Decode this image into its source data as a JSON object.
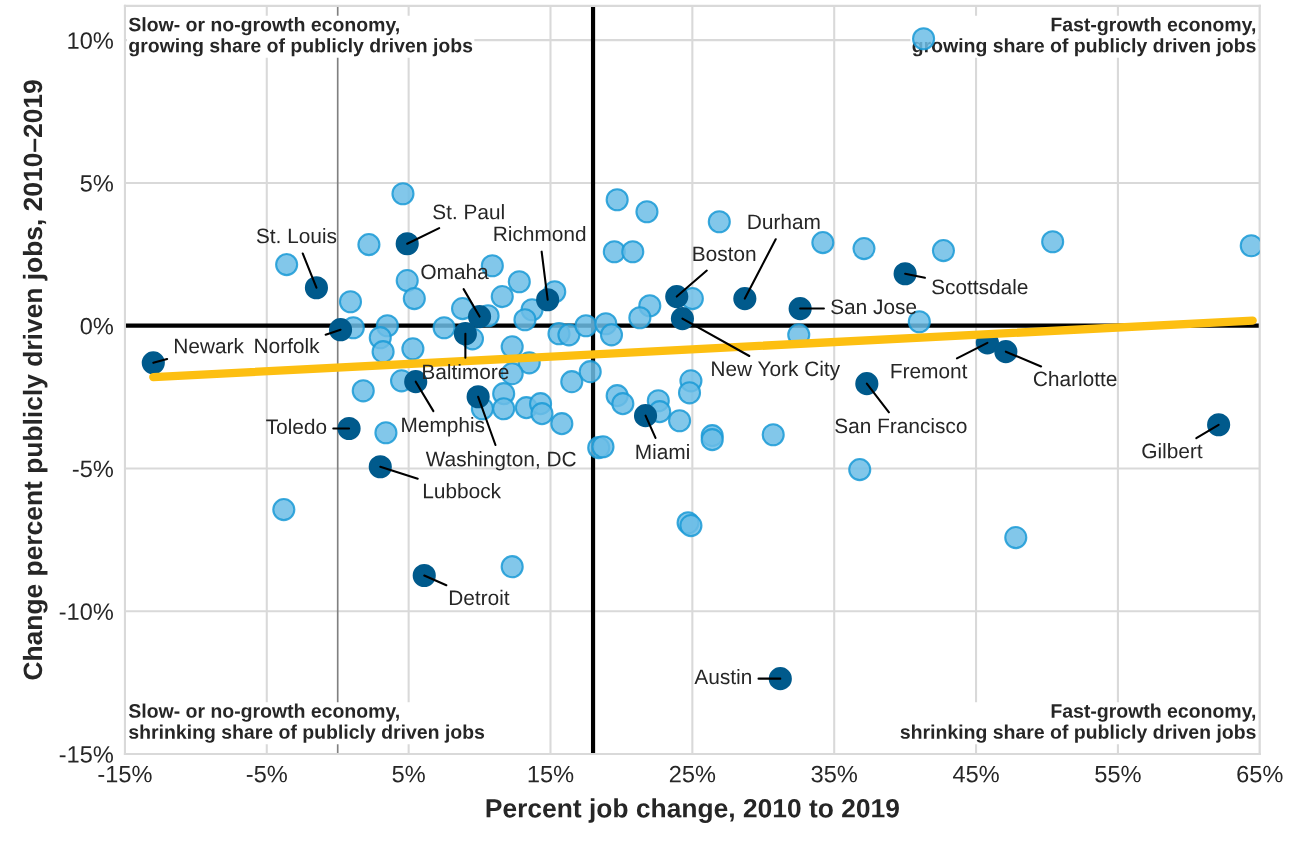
{
  "chart_data": {
    "type": "scatter",
    "xlabel": "Percent job change, 2010 to 2019",
    "ylabel": "Change percent publicly driven jobs, 2010–2019",
    "xlim": [
      -15,
      65
    ],
    "ylim": [
      -15,
      11.2
    ],
    "xticks": [
      {
        "value": -15,
        "label": "-15%"
      },
      {
        "value": -5,
        "label": "-5%"
      },
      {
        "value": 5,
        "label": "5%"
      },
      {
        "value": 15,
        "label": "15%"
      },
      {
        "value": 25,
        "label": "25%"
      },
      {
        "value": 35,
        "label": "35%"
      },
      {
        "value": 45,
        "label": "45%"
      },
      {
        "value": 55,
        "label": "55%"
      },
      {
        "value": 65,
        "label": "65%"
      }
    ],
    "yticks": [
      {
        "value": -15,
        "label": "-15%"
      },
      {
        "value": -10,
        "label": "-10%"
      },
      {
        "value": -5,
        "label": "-5%"
      },
      {
        "value": 0,
        "label": "0%"
      },
      {
        "value": 5,
        "label": "5%"
      },
      {
        "value": 10,
        "label": "10%"
      }
    ],
    "grid": true,
    "legend": false,
    "marker": "circle",
    "series": [
      {
        "color": "#6cbde6",
        "x": [
          4.6,
          2.2,
          -3.6,
          4.9,
          5.4,
          0.9,
          10.9,
          12.8,
          11.6,
          8.8,
          10.6,
          13.7,
          13.2,
          15.3,
          1.1,
          3.5,
          7.5,
          3.0,
          3.2,
          5.3,
          9.5,
          12.3,
          13.5,
          15.6,
          16.3,
          17.5,
          12.3,
          16.5,
          17.8,
          1.8,
          4.5,
          11.7,
          10.2,
          11.7,
          13.3,
          14.3,
          14.4,
          15.8,
          3.4,
          18.4,
          18.7,
          18.9,
          19.3,
          19.7,
          21.8,
          26.9,
          19.5,
          20.8,
          34.2,
          37.1,
          42.7,
          25.0,
          22.0,
          21.3,
          41.0,
          32.5,
          24.9,
          24.8,
          19.7,
          20.1,
          22.6,
          22.7,
          24.1,
          26.4,
          26.4,
          30.7,
          36.8,
          41.3,
          50.4,
          64.4,
          -3.8,
          47.8,
          24.7,
          24.9,
          12.3
        ],
        "values": [
          4.62,
          2.84,
          2.14,
          1.58,
          0.95,
          0.84,
          2.1,
          1.54,
          1.02,
          0.6,
          0.35,
          0.56,
          0.21,
          1.19,
          -0.07,
          0.0,
          -0.07,
          -0.42,
          -0.91,
          -0.81,
          -0.46,
          -0.74,
          -1.3,
          -0.28,
          -0.32,
          0.0,
          -1.68,
          -1.96,
          -1.61,
          -2.28,
          -1.93,
          -2.38,
          -2.91,
          -2.91,
          -2.87,
          -2.73,
          -3.08,
          -3.43,
          -3.75,
          -4.27,
          -4.24,
          0.07,
          -0.32,
          4.41,
          3.99,
          3.64,
          2.59,
          2.59,
          2.91,
          2.7,
          2.63,
          0.95,
          0.7,
          0.28,
          0.14,
          -0.32,
          -1.93,
          -2.35,
          -2.45,
          -2.73,
          -2.63,
          -3.01,
          -3.33,
          -3.85,
          -3.99,
          -3.82,
          -5.04,
          10.05,
          2.94,
          2.8,
          -6.44,
          -7.42,
          -6.9,
          -7.0,
          -8.44
        ]
      },
      {
        "color": "#005a8c",
        "x": [
          -13.0,
          -1.5,
          4.9,
          14.8,
          10.0,
          0.2,
          9.0,
          5.5,
          9.9,
          0.8,
          3.0,
          6.1,
          23.9,
          24.3,
          28.7,
          32.6,
          40.0,
          37.3,
          45.8,
          47.1,
          21.7,
          62.1,
          31.2
        ],
        "values": [
          -1.3,
          1.33,
          2.87,
          0.91,
          0.32,
          -0.14,
          -0.28,
          -1.96,
          -2.49,
          -3.6,
          -4.94,
          -8.75,
          1.02,
          0.25,
          0.95,
          0.6,
          1.82,
          -2.03,
          -0.6,
          -0.91,
          -3.15,
          -3.47,
          -12.36
        ]
      },
      {
        "type": "line",
        "marker": "none",
        "color": "#fdbf11",
        "x": [
          -13.0,
          64.5
        ],
        "values": [
          -1.8,
          0.18
        ]
      }
    ],
    "ref_lines": [
      {
        "axis": "x",
        "value": 18,
        "color": "#000000"
      },
      {
        "axis": "y",
        "value": 0,
        "color": "#000000"
      },
      {
        "axis": "x",
        "value": 0,
        "color": "#808080"
      }
    ],
    "annotations": [
      "Slow- or no-growth economy,\ngrowing share of publicly driven jobs",
      "Fast-growth economy,\ngrowing share of publicly driven jobs",
      "Slow- or no-growth economy,\nshrinking share of publicly driven jobs",
      "Fast-growth economy,\nshrinking share of publicly driven jobs",
      {
        "text": "Newark",
        "x": -13.0,
        "y": -1.3
      },
      {
        "text": "St. Louis",
        "x": -1.5,
        "y": 1.33
      },
      {
        "text": "St. Paul",
        "x": 4.9,
        "y": 2.87
      },
      {
        "text": "Richmond",
        "x": 14.8,
        "y": 0.91
      },
      {
        "text": "Omaha",
        "x": 10.0,
        "y": 0.32
      },
      {
        "text": "Norfolk",
        "x": 0.2,
        "y": -0.14
      },
      {
        "text": "Baltimore",
        "x": 9.0,
        "y": -0.28
      },
      {
        "text": "Memphis",
        "x": 5.5,
        "y": -1.96
      },
      {
        "text": "Washington, DC",
        "x": 9.9,
        "y": -2.49
      },
      {
        "text": "Toledo",
        "x": 0.8,
        "y": -3.6
      },
      {
        "text": "Lubbock",
        "x": 3.0,
        "y": -4.94
      },
      {
        "text": "Detroit",
        "x": 6.1,
        "y": -8.75
      },
      {
        "text": "Boston",
        "x": 23.9,
        "y": 1.02
      },
      {
        "text": "New York City",
        "x": 24.3,
        "y": 0.25
      },
      {
        "text": "Durham",
        "x": 28.7,
        "y": 0.95
      },
      {
        "text": "San Jose",
        "x": 32.6,
        "y": 0.6
      },
      {
        "text": "Scottsdale",
        "x": 40.0,
        "y": 1.82
      },
      {
        "text": "San Francisco",
        "x": 37.3,
        "y": -2.03
      },
      {
        "text": "Fremont",
        "x": 45.8,
        "y": -0.6
      },
      {
        "text": "Charlotte",
        "x": 47.1,
        "y": -0.91
      },
      {
        "text": "Miami",
        "x": 21.7,
        "y": -3.15
      },
      {
        "text": "Gilbert",
        "x": 62.1,
        "y": -3.47
      },
      {
        "text": "Austin",
        "x": 31.2,
        "y": -12.36
      }
    ]
  }
}
